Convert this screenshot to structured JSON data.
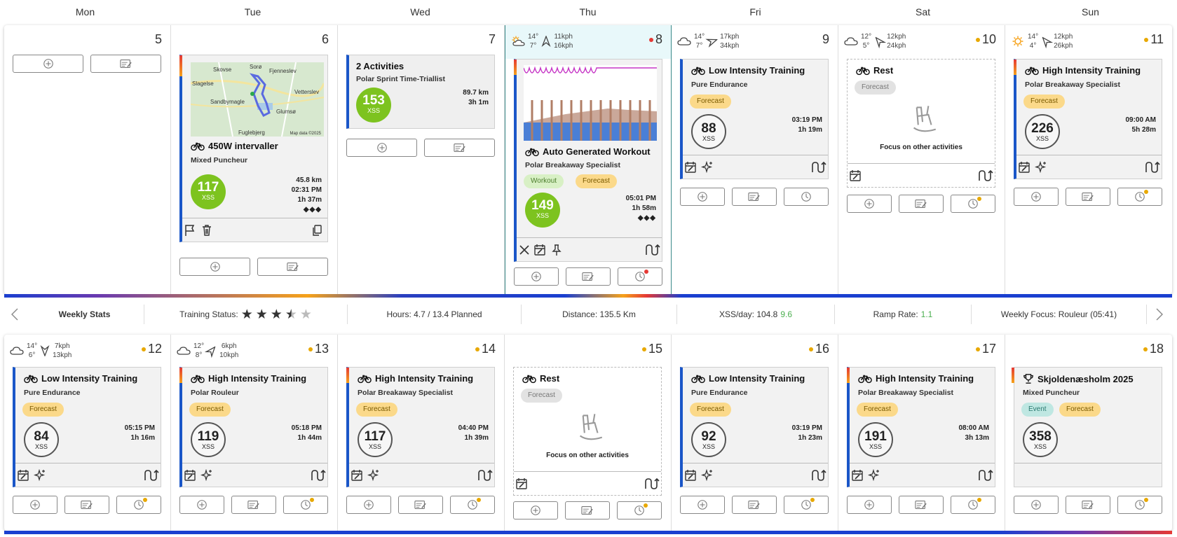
{
  "weekdays": [
    "Mon",
    "Tue",
    "Wed",
    "Thu",
    "Fri",
    "Sat",
    "Sun"
  ],
  "week1": {
    "days": [
      {
        "num": "5"
      },
      {
        "num": "6",
        "card": {
          "title": "450W intervaller",
          "subtitle": "Mixed Puncheur",
          "xss": "117",
          "distance": "45.8 km",
          "time": "02:31 PM",
          "duration": "1h 37m",
          "map_labels": [
            "Skovse",
            "Slagelse",
            "Sorø",
            "Fjenneslev",
            "Vetterslev",
            "Sandbymagle",
            "Glumsø",
            "Fuglebjerg",
            "Map data ©2025"
          ]
        }
      },
      {
        "num": "7",
        "card": {
          "title": "2 Activities",
          "subtitle": "Polar Sprint Time-Triallist",
          "xss": "153",
          "distance": "89.7 km",
          "duration": "3h 1m"
        }
      },
      {
        "num": "8",
        "weather": {
          "t_high": "14°",
          "t_low": "7°",
          "wind1": "11kph",
          "wind2": "16kph"
        },
        "card": {
          "title": "Auto Generated Workout",
          "subtitle": "Polar Breakaway Specialist",
          "tags": [
            "Workout",
            "Forecast"
          ],
          "xss": "149",
          "time": "05:01 PM",
          "duration": "1h 58m"
        }
      },
      {
        "num": "9",
        "weather": {
          "t_high": "14°",
          "t_low": "7°",
          "wind1": "17kph",
          "wind2": "34kph"
        },
        "card": {
          "title": "Low Intensity Training",
          "subtitle": "Pure Endurance",
          "tags": [
            "Forecast"
          ],
          "xss": "88",
          "time": "03:19 PM",
          "duration": "1h 19m"
        }
      },
      {
        "num": "10",
        "weather": {
          "t_high": "12°",
          "t_low": "5°",
          "wind1": "12kph",
          "wind2": "24kph"
        },
        "card": {
          "title": "Rest",
          "tags": [
            "Forecast"
          ],
          "note": "Focus on other activities"
        }
      },
      {
        "num": "11",
        "weather": {
          "t_high": "14°",
          "t_low": "4°",
          "wind1": "12kph",
          "wind2": "26kph"
        },
        "card": {
          "title": "High Intensity Training",
          "subtitle": "Polar Breakaway Specialist",
          "tags": [
            "Forecast"
          ],
          "xss": "226",
          "time": "09:00 AM",
          "duration": "5h 28m"
        }
      }
    ]
  },
  "stats": {
    "label": "Weekly Stats",
    "training_status_label": "Training Status:",
    "training_status_stars": 3.5,
    "hours": "Hours: 4.7 / 13.4 Planned",
    "distance": "Distance: 135.5 Km",
    "xss_label": "XSS/day: 104.8",
    "xss_delta": "9.6",
    "ramp_label": "Ramp Rate:",
    "ramp_value": "1.1",
    "focus": "Weekly Focus: Rouleur (05:41)"
  },
  "week2": {
    "days": [
      {
        "num": "12",
        "weather": {
          "t_high": "14°",
          "t_low": "6°",
          "wind1": "7kph",
          "wind2": "13kph"
        },
        "card": {
          "title": "Low Intensity Training",
          "subtitle": "Pure Endurance",
          "tags": [
            "Forecast"
          ],
          "xss": "84",
          "time": "05:15 PM",
          "duration": "1h 16m"
        }
      },
      {
        "num": "13",
        "weather": {
          "t_high": "12°",
          "t_low": "8°",
          "wind1": "6kph",
          "wind2": "10kph"
        },
        "card": {
          "title": "High Intensity Training",
          "subtitle": "Polar Rouleur",
          "tags": [
            "Forecast"
          ],
          "xss": "119",
          "time": "05:18 PM",
          "duration": "1h 44m"
        }
      },
      {
        "num": "14",
        "card": {
          "title": "High Intensity Training",
          "subtitle": "Polar Breakaway Specialist",
          "tags": [
            "Forecast"
          ],
          "xss": "117",
          "time": "04:40 PM",
          "duration": "1h 39m"
        }
      },
      {
        "num": "15",
        "card": {
          "title": "Rest",
          "tags": [
            "Forecast"
          ],
          "note": "Focus on other activities"
        }
      },
      {
        "num": "16",
        "card": {
          "title": "Low Intensity Training",
          "subtitle": "Pure Endurance",
          "tags": [
            "Forecast"
          ],
          "xss": "92",
          "time": "03:19 PM",
          "duration": "1h 23m"
        }
      },
      {
        "num": "17",
        "card": {
          "title": "High Intensity Training",
          "subtitle": "Polar Breakaway Specialist",
          "tags": [
            "Forecast"
          ],
          "xss": "191",
          "time": "08:00 AM",
          "duration": "3h 13m"
        }
      },
      {
        "num": "18",
        "card": {
          "title": "Skjoldenæsholm 2025",
          "subtitle": "Mixed Puncheur",
          "tags": [
            "Event",
            "Forecast"
          ],
          "xss": "358"
        }
      }
    ]
  },
  "xss_unit": "XSS",
  "diamonds": "◆◆◆",
  "colors": {
    "accent": "#1a56c8",
    "forecast": "#fbd98a",
    "green": "#7dc31f",
    "today_bg": "#e8f8fa"
  }
}
